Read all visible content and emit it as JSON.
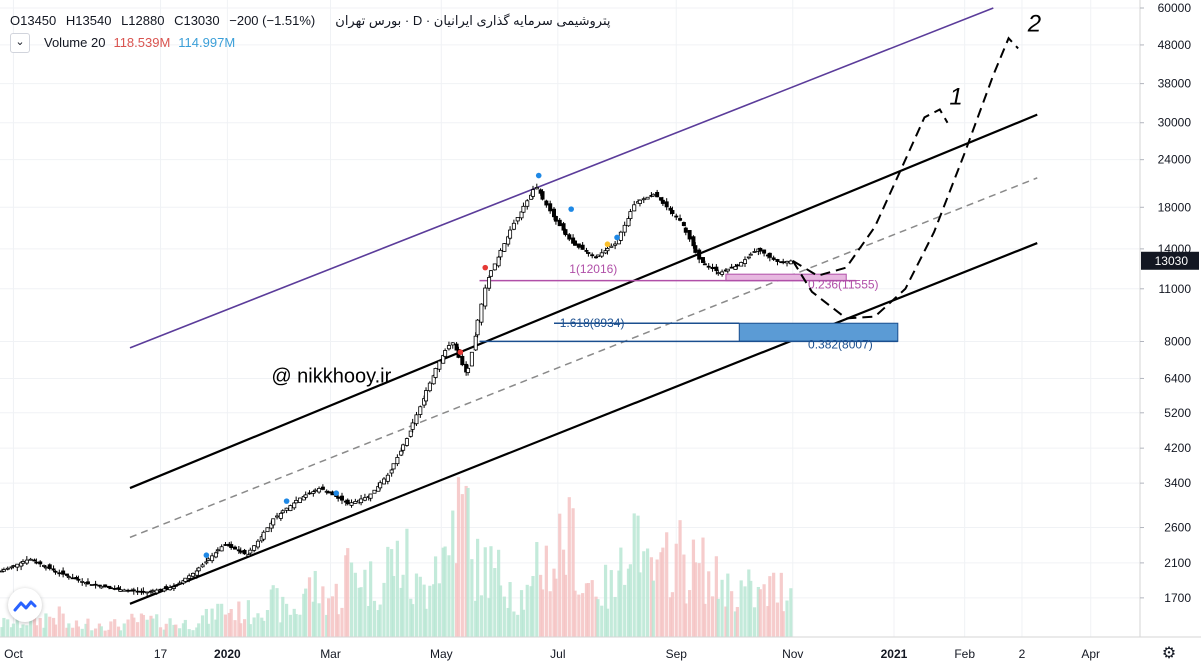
{
  "header": {
    "title": "پتروشیمی سرمایه گذاری ایرانیان · D · بورس تهران",
    "ohlc": [
      "O13450",
      "H13540",
      "L12880",
      "C13030",
      "−200 (−1.51%)"
    ],
    "volume_label": "Volume 20",
    "volume_a": "118.539M",
    "volume_b": "114.997M",
    "collapse_icon": "chevron-down-icon"
  },
  "watermark": "@ nikkhooy.ir",
  "wave_labels": [
    "1",
    "2"
  ],
  "fib": {
    "level_1": "1(12016)",
    "level_0236": "0.236(11555)",
    "level_1618": "1.618(8934)",
    "level_0382": "0.382(8007)"
  },
  "colors": {
    "up": "#26a69a",
    "down": "#000000",
    "channel": "#000000",
    "outer_channel": "#5b3c9a",
    "fib_pink": "#b04fa8",
    "fib_blue": "#1b4f8f",
    "zone_blue": "#5b9bd5",
    "price_tag": "#131722"
  },
  "chart_data": {
    "type": "candlestick",
    "symbol": "پتروشیمی سرمایه گذاری ایرانیان",
    "exchange": "بورس تهران",
    "timeframe": "D",
    "y_scale": "log",
    "y_ticks": [
      1700,
      2100,
      2600,
      3400,
      4200,
      5200,
      6400,
      8000,
      11000,
      14000,
      18000,
      24000,
      30000,
      38000,
      48000,
      60000
    ],
    "y_tick_labels": [
      "1700",
      "2100",
      "2600",
      "3400",
      "4200",
      "5200",
      "6400",
      "8000",
      "11000",
      "14000",
      "18000",
      "24000",
      "30000",
      "38000",
      "48000",
      "60000"
    ],
    "x_labels": [
      "Oct",
      "17",
      "2020",
      "Mar",
      "May",
      "Jul",
      "Sep",
      "Nov",
      "2021",
      "Feb",
      "2",
      "Apr"
    ],
    "x_label_style": [
      "normal",
      "normal",
      "bold",
      "normal",
      "normal",
      "normal",
      "normal",
      "normal",
      "bold",
      "normal",
      "normal",
      "normal"
    ],
    "last_price": "13030",
    "price_path": [
      {
        "date": "2019-09-25",
        "price": 2000
      },
      {
        "date": "2019-10-10",
        "price": 2150
      },
      {
        "date": "2019-10-25",
        "price": 1980
      },
      {
        "date": "2019-11-10",
        "price": 1850
      },
      {
        "date": "2019-11-25",
        "price": 1790
      },
      {
        "date": "2019-12-10",
        "price": 1760
      },
      {
        "date": "2019-12-25",
        "price": 1820
      },
      {
        "date": "2020-01-05",
        "price": 2000
      },
      {
        "date": "2020-01-20",
        "price": 2350
      },
      {
        "date": "2020-02-01",
        "price": 2200
      },
      {
        "date": "2020-02-15",
        "price": 2750
      },
      {
        "date": "2020-02-28",
        "price": 3100
      },
      {
        "date": "2020-03-10",
        "price": 3300
      },
      {
        "date": "2020-03-25",
        "price": 3000
      },
      {
        "date": "2020-04-05",
        "price": 3150
      },
      {
        "date": "2020-04-15",
        "price": 3600
      },
      {
        "date": "2020-04-25",
        "price": 4500
      },
      {
        "date": "2020-05-05",
        "price": 6000
      },
      {
        "date": "2020-05-12",
        "price": 7200
      },
      {
        "date": "2020-05-18",
        "price": 8000
      },
      {
        "date": "2020-05-26",
        "price": 6500
      },
      {
        "date": "2020-06-05",
        "price": 11500
      },
      {
        "date": "2020-06-20",
        "price": 16500
      },
      {
        "date": "2020-07-01",
        "price": 20500
      },
      {
        "date": "2020-07-10",
        "price": 17000
      },
      {
        "date": "2020-07-20",
        "price": 14500
      },
      {
        "date": "2020-08-01",
        "price": 13300
      },
      {
        "date": "2020-08-12",
        "price": 14500
      },
      {
        "date": "2020-08-22",
        "price": 18500
      },
      {
        "date": "2020-09-01",
        "price": 19500
      },
      {
        "date": "2020-09-15",
        "price": 16500
      },
      {
        "date": "2020-09-25",
        "price": 13000
      },
      {
        "date": "2020-10-05",
        "price": 12100
      },
      {
        "date": "2020-10-15",
        "price": 12700
      },
      {
        "date": "2020-10-25",
        "price": 14000
      },
      {
        "date": "2020-11-05",
        "price": 12900
      },
      {
        "date": "2020-11-12",
        "price": 13030
      }
    ],
    "volume_profile": [
      0.1,
      0.12,
      0.15,
      0.08,
      0.1,
      0.09,
      0.12,
      0.11,
      0.1,
      0.14,
      0.2,
      0.18,
      0.25,
      0.2,
      0.35,
      0.3,
      0.5,
      0.4,
      0.55,
      0.35,
      0.6,
      0.9,
      0.5,
      0.45,
      0.3,
      0.55,
      0.7,
      0.4,
      0.35,
      0.8,
      0.45,
      0.6,
      0.5,
      0.4,
      0.35,
      0.3,
      0.35
    ],
    "fib_levels": [
      {
        "label": "1(12016)",
        "value": 12016
      },
      {
        "label": "0.236(11555)",
        "value": 11555
      },
      {
        "label": "1.618(8934)",
        "value": 8934
      },
      {
        "label": "0.382(8007)",
        "value": 8007
      }
    ],
    "channels": [
      {
        "name": "outer",
        "start": {
          "date": "2019-12-01",
          "price": 7700
        },
        "end": {
          "date": "2021-02-25",
          "price": 60000
        }
      },
      {
        "name": "upper",
        "start": {
          "date": "2019-12-01",
          "price": 3300
        },
        "end": {
          "date": "2021-03-20",
          "price": 31500
        }
      },
      {
        "name": "mid",
        "start": {
          "date": "2019-12-01",
          "price": 2450
        },
        "end": {
          "date": "2021-03-20",
          "price": 21500
        }
      },
      {
        "name": "lower",
        "start": {
          "date": "2019-12-01",
          "price": 1640
        },
        "end": {
          "date": "2021-03-20",
          "price": 14500
        }
      }
    ],
    "projections": [
      {
        "label": "1",
        "points": [
          {
            "date": "2020-11-12",
            "price": 13030
          },
          {
            "date": "2020-11-25",
            "price": 11900
          },
          {
            "date": "2020-12-10",
            "price": 12500
          },
          {
            "date": "2020-12-25",
            "price": 16000
          },
          {
            "date": "2021-01-10",
            "price": 24000
          },
          {
            "date": "2021-01-20",
            "price": 31000
          },
          {
            "date": "2021-01-28",
            "price": 32500
          },
          {
            "date": "2021-02-01",
            "price": 30000
          }
        ]
      },
      {
        "label": "2",
        "points": [
          {
            "date": "2020-11-12",
            "price": 13030
          },
          {
            "date": "2020-11-22",
            "price": 10800
          },
          {
            "date": "2020-12-10",
            "price": 9200
          },
          {
            "date": "2020-12-25",
            "price": 9300
          },
          {
            "date": "2021-01-10",
            "price": 11000
          },
          {
            "date": "2021-01-25",
            "price": 15500
          },
          {
            "date": "2021-02-10",
            "price": 25000
          },
          {
            "date": "2021-02-25",
            "price": 40000
          },
          {
            "date": "2021-03-05",
            "price": 50000
          },
          {
            "date": "2021-03-10",
            "price": 47000
          }
        ]
      }
    ]
  }
}
